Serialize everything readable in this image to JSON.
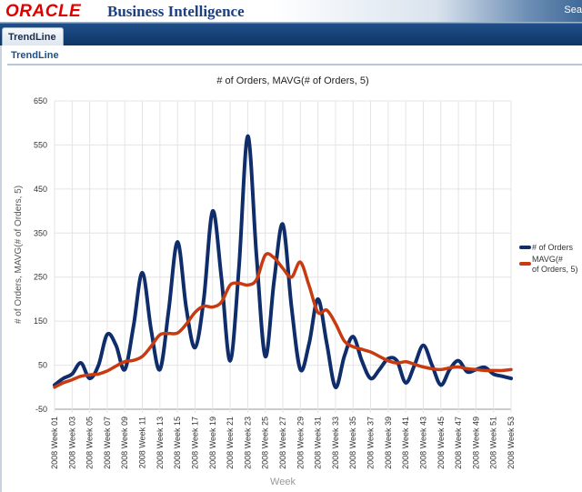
{
  "header": {
    "logo_text": "ORACLE",
    "product_title": "Business Intelligence",
    "search_label": "Sea"
  },
  "tabs": [
    {
      "label": "TrendLine",
      "active": true
    }
  ],
  "section": {
    "title": "TrendLine"
  },
  "colors": {
    "orders": "#0f2d6b",
    "mavg": "#c83a10",
    "logo": "#e00000",
    "tabbar": "#1f4f8a"
  },
  "chart_data": {
    "type": "line",
    "title": "# of Orders, MAVG(# of Orders, 5)",
    "xlabel": "Week",
    "ylabel": "# of Orders, MAVG(# of Orders, 5)",
    "ylim": [
      -50,
      650
    ],
    "yticks": [
      -50,
      50,
      150,
      250,
      350,
      450,
      550,
      650
    ],
    "grid": true,
    "legend_position": "right",
    "x_ticklabels": [
      "2008 Week 01",
      "2008 Week 03",
      "2008 Week 05",
      "2008 Week 07",
      "2008 Week 09",
      "2008 Week 11",
      "2008 Week 13",
      "2008 Week 15",
      "2008 Week 17",
      "2008 Week 19",
      "2008 Week 21",
      "2008 Week 23",
      "2008 Week 25",
      "2008 Week 27",
      "2008 Week 29",
      "2008 Week 31",
      "2008 Week 33",
      "2008 Week 35",
      "2008 Week 37",
      "2008 Week 39",
      "2008 Week 41",
      "2008 Week 43",
      "2008 Week 45",
      "2008 Week 47",
      "2008 Week 49",
      "2008 Week 51",
      "2008 Week 53"
    ],
    "x": [
      1,
      2,
      3,
      4,
      5,
      6,
      7,
      8,
      9,
      10,
      11,
      12,
      13,
      14,
      15,
      16,
      17,
      18,
      19,
      20,
      21,
      22,
      23,
      24,
      25,
      26,
      27,
      28,
      29,
      30,
      31,
      32,
      33,
      34,
      35,
      36,
      37,
      38,
      39,
      40,
      41,
      42,
      43,
      44,
      45,
      46,
      47,
      48,
      49,
      50,
      51,
      52,
      53
    ],
    "series": [
      {
        "name": "# of Orders",
        "values": [
          5,
          20,
          30,
          55,
          20,
          50,
          120,
          95,
          40,
          140,
          260,
          130,
          40,
          175,
          330,
          180,
          90,
          200,
          400,
          250,
          60,
          270,
          570,
          300,
          70,
          240,
          370,
          180,
          40,
          100,
          200,
          100,
          0,
          70,
          115,
          60,
          20,
          40,
          65,
          60,
          10,
          50,
          95,
          50,
          5,
          40,
          60,
          35,
          40,
          45,
          30,
          25,
          20
        ]
      },
      {
        "name": "MAVG(# of Orders, 5)",
        "values": [
          0,
          10,
          17,
          25,
          28,
          30,
          37,
          48,
          58,
          61,
          70,
          93,
          119,
          122,
          123,
          143,
          170,
          184,
          182,
          193,
          232,
          236,
          232,
          244,
          300,
          294,
          270,
          250,
          284,
          230,
          170,
          175,
          145,
          105,
          92,
          86,
          80,
          70,
          60,
          55,
          58,
          52,
          46,
          42,
          40,
          44,
          46,
          42,
          40,
          38,
          38,
          38,
          40
        ]
      }
    ]
  }
}
